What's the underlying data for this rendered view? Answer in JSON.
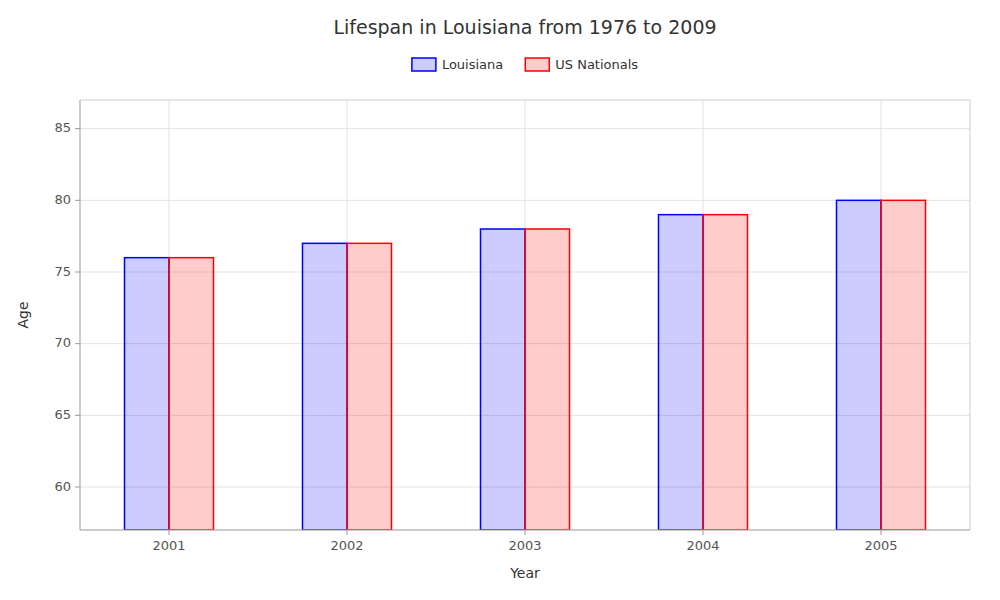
{
  "chart_data": {
    "type": "bar",
    "title": "Lifespan in Louisiana from 1976 to 2009",
    "xlabel": "Year",
    "ylabel": "Age",
    "categories": [
      "2001",
      "2002",
      "2003",
      "2004",
      "2005"
    ],
    "series": [
      {
        "name": "Louisiana",
        "color": "#0000ff",
        "values": [
          76,
          77,
          78,
          79,
          80
        ]
      },
      {
        "name": "US Nationals",
        "color": "#ff0000",
        "values": [
          76,
          77,
          78,
          79,
          80
        ]
      }
    ],
    "ylim": [
      57,
      87
    ],
    "yticks": [
      60,
      65,
      70,
      75,
      80,
      85
    ],
    "grid": true,
    "legend": "top"
  }
}
